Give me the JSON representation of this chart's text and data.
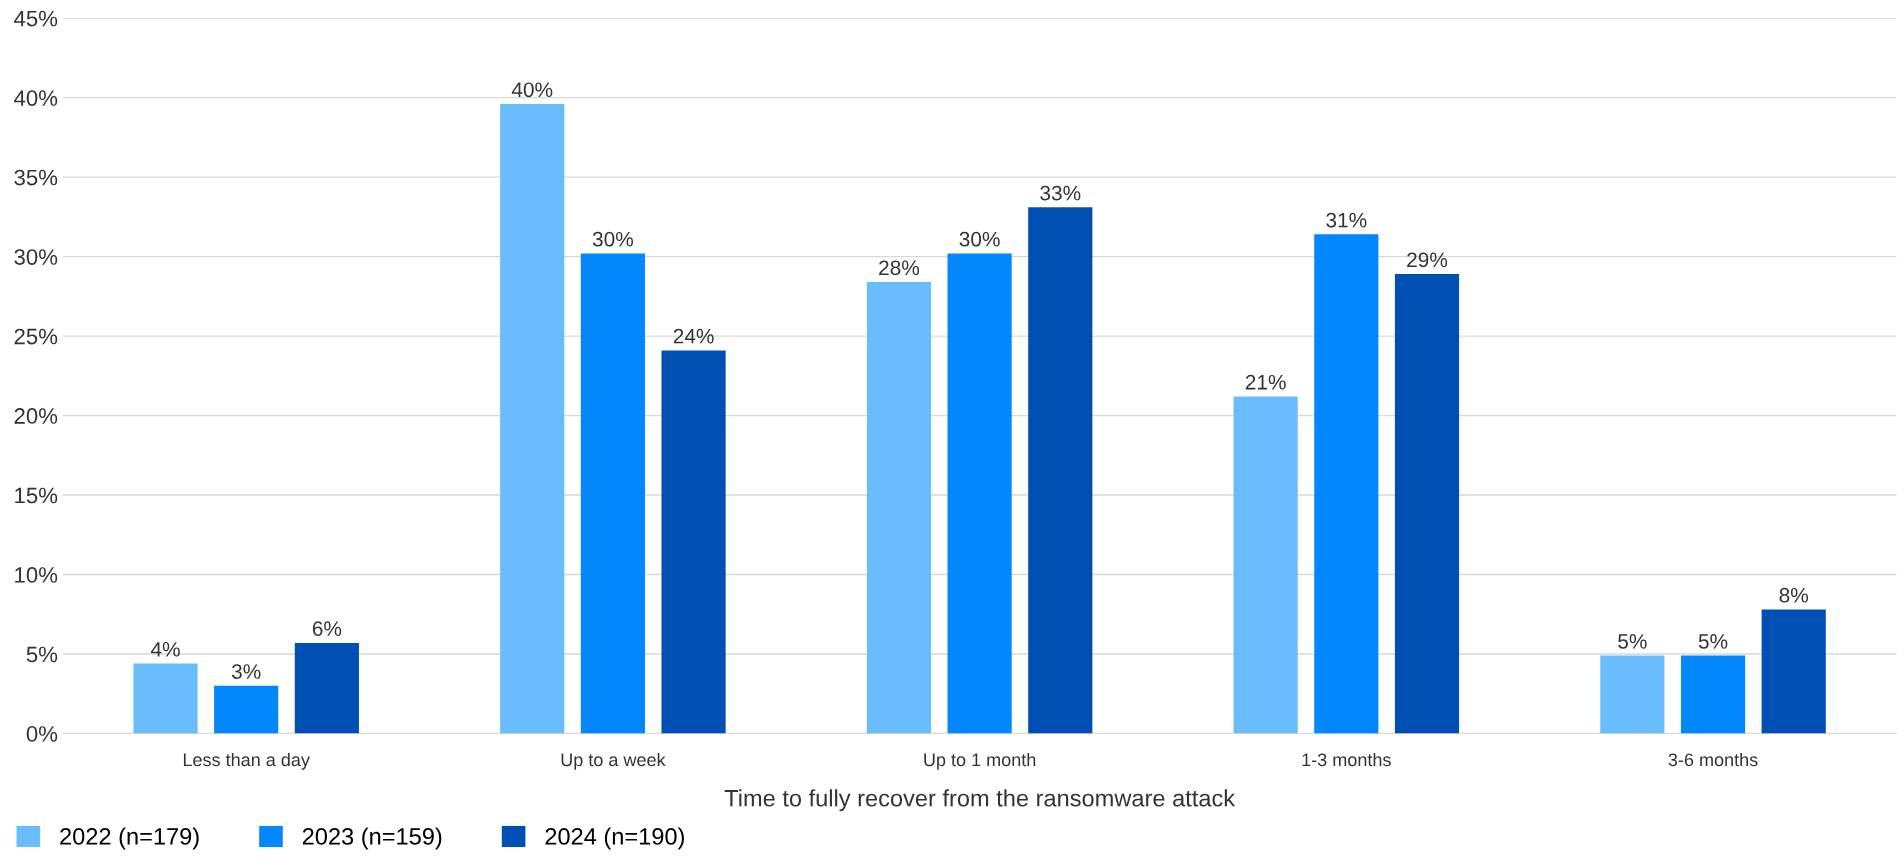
{
  "chart_data": {
    "type": "bar",
    "xlabel": "Time to fully recover from the ransomware attack",
    "categories": [
      "Less than a day",
      "Up to a week",
      "Up to 1 month",
      "1-3 months",
      "3-6 months"
    ],
    "series": [
      {
        "name": "2022 (n=179)",
        "color": "#6abdfd",
        "values": [
          4.4,
          39.6,
          28.4,
          21.2,
          4.9
        ],
        "value_labels": [
          "4%",
          "40%",
          "28%",
          "21%",
          "5%"
        ]
      },
      {
        "name": "2023 (n=159)",
        "color": "#0288fc",
        "values": [
          3.0,
          30.2,
          30.2,
          31.4,
          4.9
        ],
        "value_labels": [
          "3%",
          "30%",
          "30%",
          "31%",
          "5%"
        ]
      },
      {
        "name": "2024 (n=190)",
        "color": "#0050b4",
        "values": [
          5.7,
          24.1,
          33.1,
          28.9,
          7.8
        ],
        "value_labels": [
          "6%",
          "24%",
          "33%",
          "29%",
          "8%"
        ]
      }
    ],
    "ylim": [
      0,
      45
    ],
    "yticks": [
      {
        "value": 0,
        "label": "0%"
      },
      {
        "value": 5,
        "label": "5%"
      },
      {
        "value": 10,
        "label": "10%"
      },
      {
        "value": 15,
        "label": "15%"
      },
      {
        "value": 20,
        "label": "20%"
      },
      {
        "value": 25,
        "label": "25%"
      },
      {
        "value": 30,
        "label": "30%"
      },
      {
        "value": 35,
        "label": "35%"
      },
      {
        "value": 40,
        "label": "40%"
      },
      {
        "value": 45,
        "label": "45%"
      }
    ],
    "grid": "y",
    "legend": "bottom left"
  }
}
